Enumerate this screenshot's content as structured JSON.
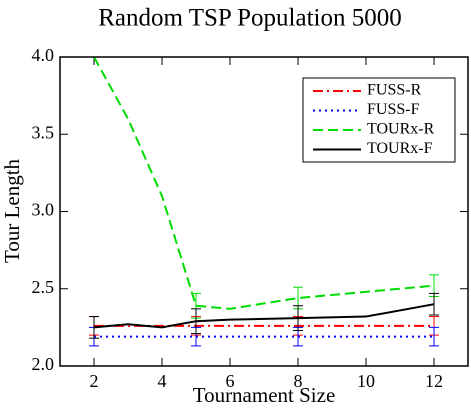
{
  "chart_data": {
    "type": "line",
    "title": "Random TSP  Population 5000",
    "x_label": "Tournament Size",
    "y_label": "Tour Length",
    "xlim": [
      1,
      13
    ],
    "xticks": [
      2,
      4,
      6,
      8,
      10,
      12
    ],
    "ylim": [
      2.0,
      4.0
    ],
    "yticks": [
      {
        "value": 2.0,
        "label": "2.0"
      },
      {
        "value": 2.5,
        "label": "2.5"
      },
      {
        "value": 3.0,
        "label": "3.0"
      },
      {
        "value": 3.5,
        "label": "3.5"
      },
      {
        "value": 4.0,
        "label": "4.0"
      }
    ],
    "legend": "upper right",
    "series": [
      {
        "name": "FUSS-R",
        "color": "#ff0000",
        "style": "dashdot",
        "x": [
          2,
          5,
          8,
          12
        ],
        "values": [
          2.26,
          2.26,
          2.26,
          2.26
        ],
        "errors": [
          0.06,
          0.06,
          0.06,
          0.06
        ]
      },
      {
        "name": "FUSS-F",
        "color": "#0000ff",
        "style": "dotted",
        "x": [
          2,
          5,
          8,
          12
        ],
        "values": [
          2.19,
          2.19,
          2.19,
          2.19
        ],
        "errors": [
          0.06,
          0.06,
          0.06,
          0.06
        ]
      },
      {
        "name": "TOURx-R",
        "color": "#00dd00",
        "style": "dashed",
        "x": [
          2,
          3,
          4,
          5,
          6,
          8,
          10,
          12
        ],
        "values": [
          4.0,
          3.6,
          3.1,
          2.39,
          2.37,
          2.44,
          2.48,
          2.52
        ],
        "errors": [
          null,
          null,
          null,
          0.08,
          null,
          0.07,
          null,
          0.07
        ]
      },
      {
        "name": "TOURx-F",
        "color": "#000000",
        "style": "solid",
        "x": [
          2,
          3,
          4,
          5,
          6,
          8,
          10,
          12
        ],
        "values": [
          2.25,
          2.27,
          2.25,
          2.29,
          2.3,
          2.31,
          2.32,
          2.4
        ],
        "errors": [
          0.07,
          null,
          null,
          0.08,
          null,
          0.08,
          null,
          0.07
        ]
      }
    ]
  }
}
